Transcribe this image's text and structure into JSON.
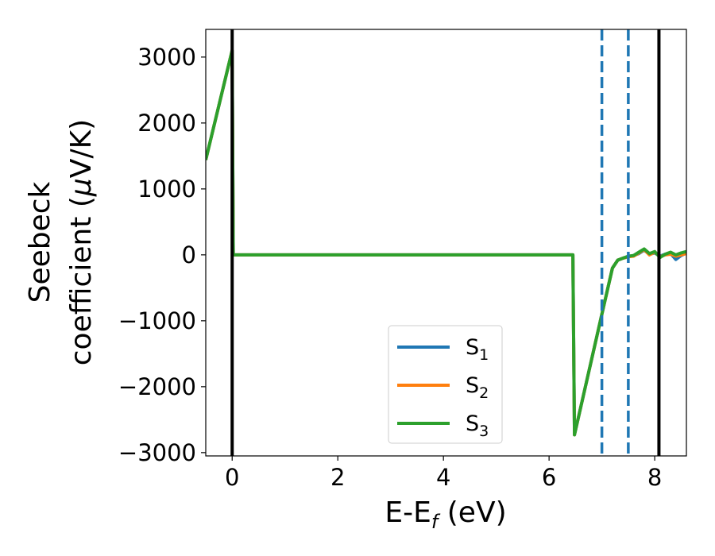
{
  "chart_data": {
    "type": "line",
    "xlabel": "E-E",
    "xlabel_sub": "f",
    "xlabel_unit": " (eV)",
    "ylabel_line1": "Seebeck",
    "ylabel_line2": "coefficient  (",
    "ylabel_mu": "μ",
    "ylabel_unit": "V/K)",
    "xlim": [
      -0.5,
      8.6
    ],
    "ylim": [
      -3050,
      3420
    ],
    "x_ticks": [
      0,
      2,
      4,
      6,
      8
    ],
    "x_tick_labels": [
      "0",
      "2",
      "4",
      "6",
      "8"
    ],
    "y_ticks": [
      -3000,
      -2000,
      -1000,
      0,
      1000,
      2000,
      3000
    ],
    "y_tick_labels": [
      "−3000",
      "−2000",
      "−1000",
      "0",
      "1000",
      "2000",
      "3000"
    ],
    "grid": false,
    "legend_position": "bottom-center",
    "vlines": [
      {
        "x": 0,
        "style": "solid",
        "color": "#000000"
      },
      {
        "x": 7.0,
        "style": "dashed",
        "color": "#1f77b4"
      },
      {
        "x": 7.5,
        "style": "dashed",
        "color": "#1f77b4"
      },
      {
        "x": 8.08,
        "style": "solid",
        "color": "#000000"
      }
    ],
    "series": [
      {
        "name": "S",
        "sub": "1",
        "color": "#1f77b4",
        "x": [
          -0.5,
          0.0,
          0.02,
          6.45,
          6.45,
          6.48,
          7.0,
          7.2,
          7.3,
          7.4,
          7.5,
          7.6,
          7.7,
          7.8,
          7.9,
          8.0,
          8.1,
          8.2,
          8.3,
          8.4,
          8.5,
          8.6
        ],
        "y": [
          1440,
          3100,
          0,
          0,
          0,
          -2730,
          -900,
          -200,
          -80,
          -50,
          -30,
          -10,
          20,
          70,
          10,
          30,
          -20,
          10,
          20,
          -70,
          -10,
          30
        ]
      },
      {
        "name": "S",
        "sub": "2",
        "color": "#ff7f0e",
        "x": [
          -0.5,
          0.0,
          0.02,
          6.45,
          6.45,
          6.48,
          7.0,
          7.2,
          7.3,
          7.4,
          7.5,
          7.6,
          7.7,
          7.8,
          7.9,
          8.0,
          8.1,
          8.2,
          8.3,
          8.4,
          8.5,
          8.6
        ],
        "y": [
          1440,
          3100,
          0,
          0,
          0,
          -2730,
          -900,
          -200,
          -80,
          -50,
          -30,
          -20,
          30,
          80,
          0,
          40,
          -30,
          0,
          10,
          -20,
          0,
          20
        ]
      },
      {
        "name": "S",
        "sub": "3",
        "color": "#2ca02c",
        "x": [
          -0.5,
          0.0,
          0.02,
          6.45,
          6.45,
          6.48,
          7.0,
          7.2,
          7.3,
          7.4,
          7.5,
          7.6,
          7.7,
          7.8,
          7.9,
          8.0,
          8.1,
          8.2,
          8.3,
          8.4,
          8.5,
          8.6
        ],
        "y": [
          1440,
          3100,
          0,
          0,
          0,
          -2730,
          -900,
          -200,
          -80,
          -50,
          -20,
          -10,
          40,
          90,
          20,
          50,
          -40,
          10,
          40,
          0,
          30,
          50
        ]
      }
    ]
  }
}
